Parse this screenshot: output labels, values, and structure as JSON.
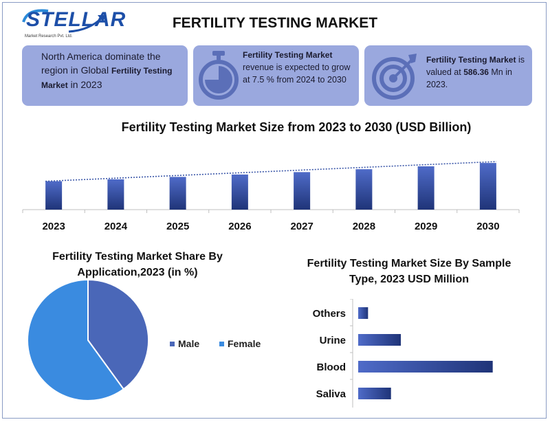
{
  "header": {
    "logo_text": "STELLAR",
    "logo_subtext": "Market Research Pvt. Ltd.",
    "title": "FERTILITY TESTING MARKET"
  },
  "info_boxes": [
    {
      "parts": [
        "North America dominate the region in Global ",
        "Fertility Testing Market",
        " in 2023"
      ],
      "icon": "world-icon"
    },
    {
      "parts": [
        "Fertility Testing Market",
        " revenue is expected to grow at 7.5 % from 2024 to 2030"
      ],
      "icon": "stopwatch-icon"
    },
    {
      "parts": [
        "Fertility Testing Market",
        " is valued at ",
        "586.36",
        " Mn in 2023."
      ],
      "icon": "target-icon"
    }
  ],
  "colors": {
    "box_bg": "#9aa8de",
    "bar_light": "#4f6bc8",
    "bar_dark": "#1f3478",
    "pie_male": "#4a67b8",
    "pie_female": "#3a8be0"
  },
  "chart_data": [
    {
      "type": "bar",
      "title": "Fertility Testing Market Size from 2023 to 2030 (USD Billion)",
      "categories": [
        "2023",
        "2024",
        "2025",
        "2026",
        "2027",
        "2028",
        "2029",
        "2030"
      ],
      "values": [
        0.59,
        0.63,
        0.68,
        0.73,
        0.78,
        0.84,
        0.9,
        0.97
      ],
      "trendline": true,
      "xlabel": "",
      "ylabel": "",
      "ylim": [
        0,
        1.0
      ]
    },
    {
      "type": "pie",
      "title": "Fertility Testing Market Share By Application,2023 (in %)",
      "labels": [
        "Male",
        "Female"
      ],
      "values": [
        40,
        60
      ],
      "legend": "right"
    },
    {
      "type": "bar",
      "orientation": "horizontal",
      "title": "Fertility Testing Market Size By Sample Type, 2023 USD Million",
      "categories": [
        "Others",
        "Urine",
        "Blood",
        "Saliva"
      ],
      "values": [
        15,
        65,
        205,
        50
      ],
      "xlim": [
        0,
        220
      ]
    }
  ]
}
